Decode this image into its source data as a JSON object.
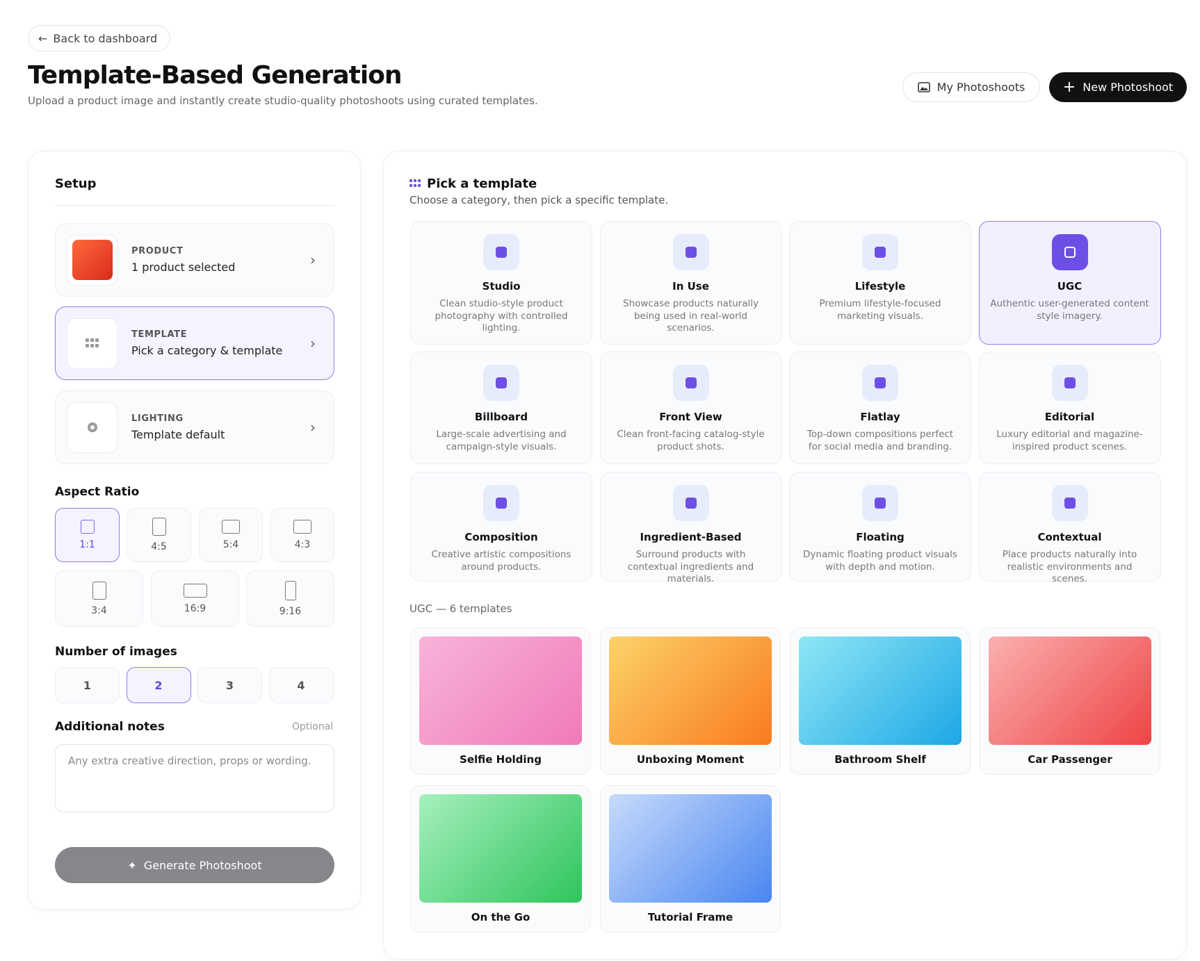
{
  "header": {
    "back": "Back to dashboard",
    "title": "Template-Based Generation",
    "subtitle": "Upload a product image and instantly create studio-quality photoshoots using curated templates.",
    "my_photoshoots": "My Photoshoots",
    "new_photoshoot": "New Photoshoot"
  },
  "setup": {
    "title": "Setup",
    "steps": [
      {
        "label": "Product",
        "value": "1 product selected"
      },
      {
        "label": "Template",
        "value": "Pick a category & template"
      },
      {
        "label": "Lighting",
        "value": "Template default"
      }
    ],
    "aspect_ratio": {
      "title": "Aspect Ratio",
      "options": [
        "1:1",
        "4:5",
        "5:4",
        "4:3",
        "3:4",
        "16:9",
        "9:16"
      ]
    },
    "number_of_images": {
      "title": "Number of images",
      "options": [
        "1",
        "2",
        "3",
        "4"
      ]
    },
    "notes": {
      "title": "Additional notes",
      "optional": "Optional",
      "placeholder": "Any extra creative direction, props or wording."
    },
    "generate": "Generate Photoshoot"
  },
  "picker": {
    "title": "Pick a template",
    "subtitle": "Choose a category, then pick a specific template.",
    "categories": [
      {
        "name": "Studio",
        "description": "Clean studio-style product photography with controlled lighting."
      },
      {
        "name": "In Use",
        "description": "Showcase products naturally being used in real-world scenarios."
      },
      {
        "name": "Lifestyle",
        "description": "Premium lifestyle-focused marketing visuals."
      },
      {
        "name": "UGC",
        "description": "Authentic user-generated content style imagery."
      },
      {
        "name": "Billboard",
        "description": "Large-scale advertising and campaign-style visuals."
      },
      {
        "name": "Front View",
        "description": "Clean front-facing catalog-style product shots."
      },
      {
        "name": "Flatlay",
        "description": "Top-down compositions perfect for social media and branding."
      },
      {
        "name": "Editorial",
        "description": "Luxury editorial and magazine-inspired product scenes."
      },
      {
        "name": "Composition",
        "description": "Creative artistic compositions around products."
      },
      {
        "name": "Ingredient-Based",
        "description": "Surround products with contextual ingredients and materials."
      },
      {
        "name": "Floating",
        "description": "Dynamic floating product visuals with depth and motion."
      },
      {
        "name": "Contextual",
        "description": "Place products naturally into realistic environments and scenes."
      }
    ],
    "templates_heading": "UGC — 6 templates",
    "templates": [
      "Selfie Holding",
      "Unboxing Moment",
      "Bathroom Shelf",
      "Car Passenger",
      "On the Go",
      "Tutorial Frame"
    ]
  }
}
